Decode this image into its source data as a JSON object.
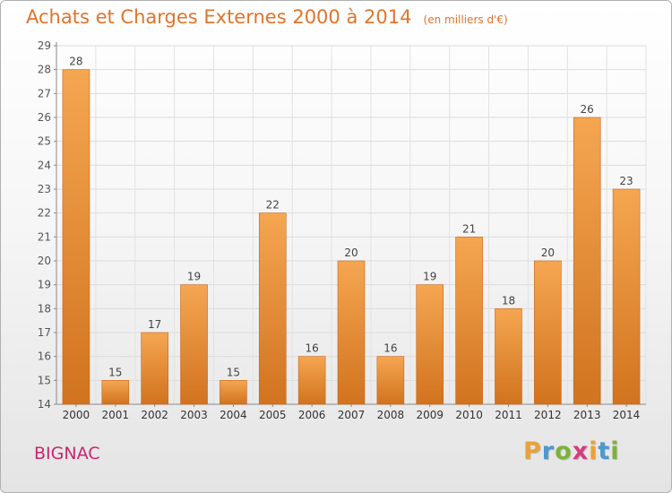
{
  "chart_data": {
    "type": "bar",
    "title": "Achats et Charges Externes 2000 à 2014",
    "unit": "(en milliers d'€)",
    "categories": [
      "2000",
      "2001",
      "2002",
      "2003",
      "2004",
      "2005",
      "2006",
      "2007",
      "2008",
      "2009",
      "2010",
      "2011",
      "2012",
      "2013",
      "2014"
    ],
    "values": [
      28,
      15,
      17,
      19,
      15,
      22,
      16,
      20,
      16,
      19,
      21,
      18,
      20,
      26,
      23
    ],
    "ylim": [
      14,
      29
    ],
    "yticks": [
      14,
      15,
      16,
      17,
      18,
      19,
      20,
      21,
      22,
      23,
      24,
      25,
      26,
      27,
      28,
      29
    ],
    "grid": true,
    "bar_color_top": "#f5a651",
    "bar_color_bottom": "#d1731f"
  },
  "location": "BIGNAC",
  "logo": {
    "letters": [
      "P",
      "r",
      "o",
      "x",
      "i",
      "t",
      "i"
    ],
    "colors": [
      "#e9a23b",
      "#4e97cf",
      "#7db23a",
      "#d43d7d",
      "#e9a23b",
      "#4e97cf",
      "#7db23a"
    ]
  }
}
